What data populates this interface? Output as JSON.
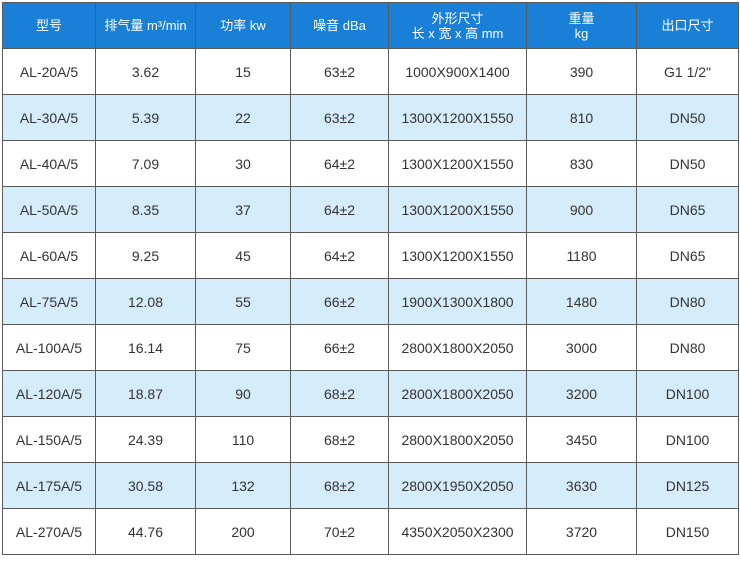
{
  "table": {
    "headers": [
      [
        "型号"
      ],
      [
        "排气量 m³/min"
      ],
      [
        "功率 kw"
      ],
      [
        "噪音 dBa"
      ],
      [
        "外形尺寸",
        "长 x 宽 x 高 mm"
      ],
      [
        "重量",
        "kg"
      ],
      [
        "出口尺寸"
      ]
    ],
    "rows": [
      [
        "AL-20A/5",
        "3.62",
        "15",
        "63±2",
        "1000X900X1400",
        "390",
        "G1 1/2\""
      ],
      [
        "AL-30A/5",
        "5.39",
        "22",
        "63±2",
        "1300X1200X1550",
        "810",
        "DN50"
      ],
      [
        "AL-40A/5",
        "7.09",
        "30",
        "64±2",
        "1300X1200X1550",
        "830",
        "DN50"
      ],
      [
        "AL-50A/5",
        "8.35",
        "37",
        "64±2",
        "1300X1200X1550",
        "900",
        "DN65"
      ],
      [
        "AL-60A/5",
        "9.25",
        "45",
        "64±2",
        "1300X1200X1550",
        "1180",
        "DN65"
      ],
      [
        "AL-75A/5",
        "12.08",
        "55",
        "66±2",
        "1900X1300X1800",
        "1480",
        "DN80"
      ],
      [
        "AL-100A/5",
        "16.14",
        "75",
        "66±2",
        "2800X1800X2050",
        "3000",
        "DN80"
      ],
      [
        "AL-120A/5",
        "18.87",
        "90",
        "68±2",
        "2800X1800X2050",
        "3200",
        "DN100"
      ],
      [
        "AL-150A/5",
        "24.39",
        "110",
        "68±2",
        "2800X1800X2050",
        "3450",
        "DN100"
      ],
      [
        "AL-175A/5",
        "30.58",
        "132",
        "68±2",
        "2800X1950X2050",
        "3630",
        "DN125"
      ],
      [
        "AL-270A/5",
        "44.76",
        "200",
        "70±2",
        "4350X2050X2300",
        "3720",
        "DN150"
      ]
    ],
    "colors": {
      "header_bg": "#1a7fd6",
      "header_text": "#ffffff",
      "alt_row_bg": "#d5ecfb",
      "row_bg": "#ffffff",
      "border": "#5a5a5a"
    }
  }
}
